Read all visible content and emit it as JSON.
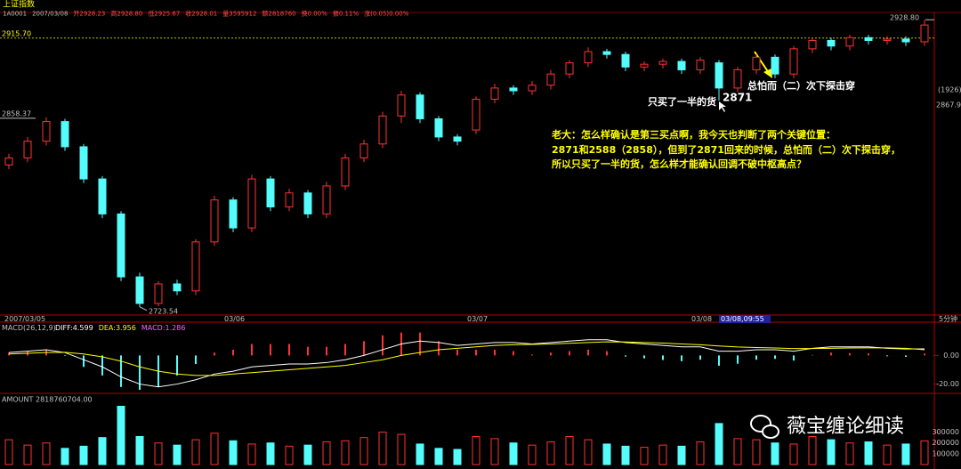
{
  "chart_data": [
    {
      "type": "candlestick",
      "title": "上证指数",
      "quote": [
        "1A0001",
        "2007/03/08",
        "开2928.23",
        "高2928.80",
        "低2925.67",
        "收2928.01",
        "量3595912",
        "额2818760",
        "换0.00%",
        "振0.11%",
        "涨(0.05)0.00%"
      ],
      "categories": [
        "2007/03/05",
        null,
        null,
        null,
        null,
        null,
        null,
        null,
        null,
        null,
        null,
        null,
        "03/06",
        null,
        null,
        null,
        null,
        null,
        null,
        null,
        null,
        null,
        null,
        null,
        null,
        "03/07",
        null,
        null,
        null,
        null,
        null,
        null,
        null,
        null,
        null,
        null,
        null,
        "03/08",
        null,
        null,
        null,
        null,
        null,
        null,
        null,
        null,
        null,
        null,
        null,
        null
      ],
      "open": [
        2825,
        2830,
        2842,
        2856,
        2838,
        2815,
        2790,
        2745,
        2726,
        2740,
        2735,
        2770,
        2800,
        2780,
        2815,
        2795,
        2805,
        2790,
        2810,
        2830,
        2840,
        2860,
        2875,
        2858,
        2845,
        2850,
        2872,
        2880,
        2878,
        2882,
        2890,
        2898,
        2906,
        2904,
        2895,
        2897,
        2899,
        2893,
        2898,
        2880,
        2893,
        2902,
        2890,
        2908,
        2914,
        2910,
        2916,
        2914,
        2915,
        2913
      ],
      "high": [
        2833,
        2845,
        2859,
        2858,
        2840,
        2817,
        2792,
        2748,
        2742,
        2743,
        2772,
        2803,
        2802,
        2818,
        2817,
        2808,
        2807,
        2813,
        2833,
        2843,
        2863,
        2878,
        2877,
        2860,
        2847,
        2874,
        2883,
        2882,
        2885,
        2893,
        2900,
        2909,
        2908,
        2906,
        2899,
        2901,
        2901,
        2902,
        2900,
        2895,
        2904,
        2904,
        2910,
        2916,
        2916,
        2918,
        2918,
        2917,
        2917,
        2928.8
      ],
      "low": [
        2822,
        2827,
        2839,
        2835,
        2812,
        2787,
        2742,
        2723.54,
        2724,
        2732,
        2732,
        2767,
        2777,
        2777,
        2792,
        2792,
        2787,
        2787,
        2807,
        2827,
        2837,
        2855,
        2855,
        2842,
        2839,
        2847,
        2869,
        2875,
        2875,
        2879,
        2887,
        2895,
        2901,
        2892,
        2892,
        2894,
        2890,
        2890,
        2871,
        2877,
        2890,
        2887,
        2887,
        2905,
        2907,
        2907,
        2911,
        2911,
        2910,
        2910
      ],
      "close": [
        2830,
        2842,
        2856,
        2838,
        2815,
        2790,
        2745,
        2726,
        2740,
        2735,
        2770,
        2800,
        2780,
        2815,
        2795,
        2805,
        2790,
        2810,
        2830,
        2840,
        2860,
        2875,
        2858,
        2845,
        2842,
        2872,
        2880,
        2878,
        2882,
        2890,
        2898,
        2906,
        2904,
        2895,
        2897,
        2899,
        2893,
        2900,
        2880,
        2893,
        2902,
        2890,
        2908,
        2914,
        2910,
        2916,
        2914,
        2915,
        2913,
        2925
      ],
      "ylim": [
        2719,
        2934
      ],
      "price_labels": [
        {
          "value": 2928.8,
          "label": "2928.80"
        },
        {
          "value": 2915.7,
          "label": "2915.70"
        },
        {
          "value": 2858.37,
          "label": "2858.37"
        },
        {
          "value": 2723.54,
          "label": "2723.54"
        },
        {
          "value": 2867.9,
          "label": "2867.90"
        }
      ],
      "right_tag": "(1926)",
      "annotations": {
        "half": "只买了一半的货",
        "low": "2871",
        "break": "总怕而（二）次下探击穿",
        "comment": [
          "老大：怎么样确认是第三买点啊，我今天也判断了两个关键位置：",
          "2871和2588（2858），但到了2871回来的时候，总怕而（二）次下探击穿，",
          "所以只买了一半的货，怎么样才能确认回调不破中枢高点？"
        ]
      },
      "cursor_label": "03/08,09:55",
      "period": "5分钟",
      "up_color": "#ff3232",
      "down_color": "#54fcfc"
    },
    {
      "type": "macd",
      "title": "MACD(26,12,9)",
      "header": [
        "DIFF:4.599",
        "DEA:3.956",
        "MACD:1.286"
      ],
      "series": [
        {
          "name": "DIFF",
          "color": "#ffffff",
          "values": [
            2,
            3,
            4,
            2,
            -3,
            -8,
            -15,
            -20,
            -22,
            -20,
            -17,
            -13,
            -11,
            -8,
            -7,
            -6,
            -6,
            -5,
            -3,
            0,
            4,
            8,
            10,
            9,
            7,
            8,
            9,
            9,
            8,
            9,
            10,
            11,
            11,
            9,
            8,
            7,
            6,
            6,
            3,
            3,
            4,
            4,
            3,
            5,
            6,
            6,
            6,
            5,
            4.5,
            4.599
          ]
        },
        {
          "name": "DEA",
          "color": "#ffff00",
          "values": [
            1,
            1.5,
            2,
            2.2,
            1,
            -1,
            -4,
            -8,
            -11,
            -13,
            -14,
            -14,
            -13,
            -12,
            -11,
            -10,
            -9,
            -8,
            -7,
            -5,
            -3,
            0,
            2,
            4,
            5,
            6,
            7,
            7.5,
            7.7,
            8,
            8.5,
            9,
            9.5,
            9.4,
            9,
            8.6,
            8,
            7.5,
            6.6,
            5.9,
            5.5,
            5.2,
            4.8,
            4.8,
            5,
            5.2,
            5.3,
            5.3,
            5,
            3.956
          ]
        }
      ],
      "histogram": [
        2,
        3,
        4,
        -0.4,
        -8,
        -14,
        -22,
        -24,
        -22,
        -14,
        -6,
        2,
        4,
        8,
        8,
        8,
        6,
        6,
        8,
        10,
        14,
        16,
        16,
        10,
        4,
        4,
        4,
        3,
        0.6,
        2,
        3,
        4,
        3,
        -0.8,
        -2,
        -3.2,
        -4,
        -3,
        -7.2,
        -5.8,
        -3,
        -2.4,
        -3.6,
        0.4,
        2,
        1.6,
        1.4,
        -0.6,
        -1,
        1.286
      ],
      "ylim": [
        -24,
        22
      ],
      "yticks": [
        {
          "value": 0,
          "label": "0.00"
        },
        {
          "value": -20,
          "label": "-20.00"
        }
      ]
    },
    {
      "type": "volume",
      "title": "AMOUNT",
      "header": "2818760704.00",
      "values": [
        230000,
        180000,
        200000,
        150000,
        170000,
        250000,
        540000,
        260000,
        200000,
        180000,
        230000,
        290000,
        220000,
        190000,
        200000,
        170000,
        180000,
        210000,
        220000,
        250000,
        300000,
        280000,
        190000,
        150000,
        140000,
        260000,
        240000,
        200000,
        180000,
        210000,
        260000,
        230000,
        190000,
        170000,
        160000,
        180000,
        170000,
        210000,
        380000,
        240000,
        230000,
        200000,
        190000,
        260000,
        230000,
        200000,
        210000,
        180000,
        190000,
        220000
      ],
      "ylim": [
        0,
        610000
      ],
      "yticks": [
        100000,
        200000,
        300000
      ]
    }
  ],
  "watermark": "薇宝缠论细读"
}
